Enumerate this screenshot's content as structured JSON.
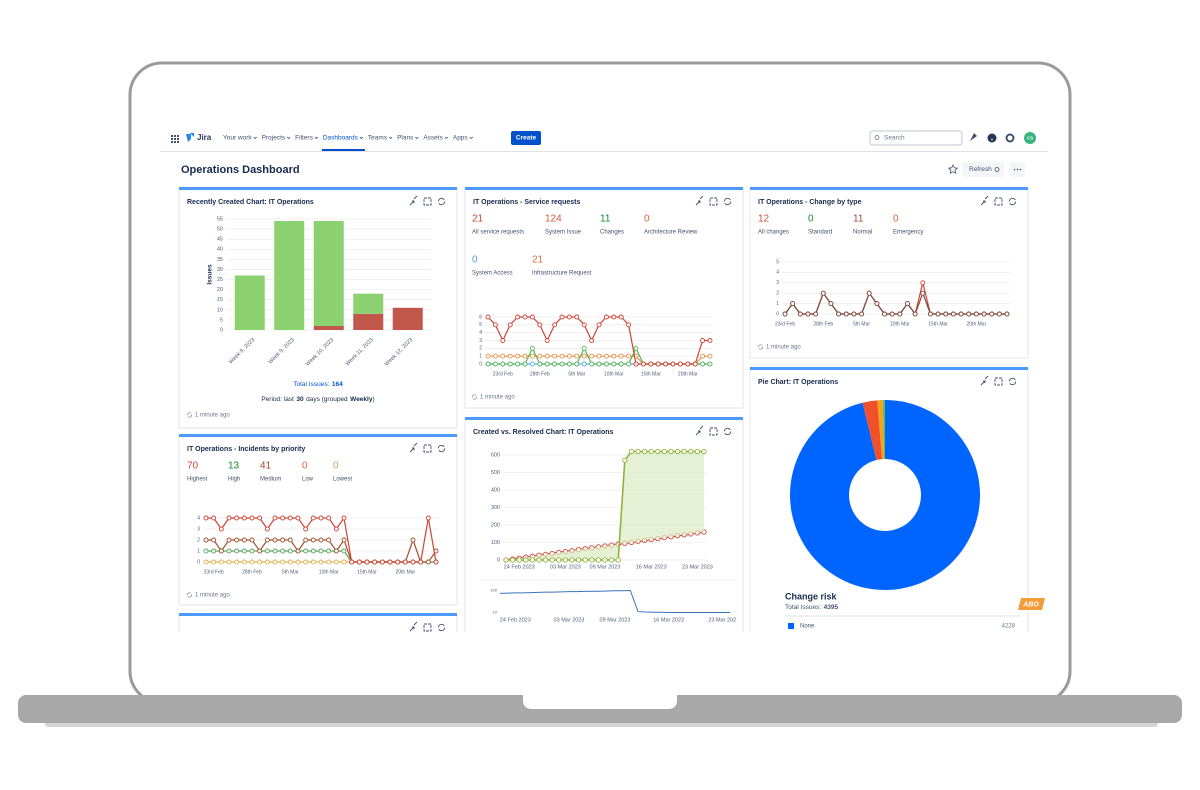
{
  "nav": {
    "logo": "Jira",
    "items": [
      "Your work",
      "Projects",
      "Filters",
      "Dashboards",
      "Teams",
      "Plans",
      "Assets",
      "Apps"
    ],
    "active": "Dashboards",
    "create": "Create",
    "search": "Search",
    "avatar": "CS"
  },
  "page": {
    "title": "Operations Dashboard",
    "refresh": "Refresh",
    "badge": "ABO"
  },
  "gadgets": {
    "created_chart": {
      "title": "Recently Created Chart: IT Operations",
      "updated": "1 minute ago",
      "chart": {
        "type": "bar",
        "y_label": "Issues",
        "categories": [
          "Week 8, 2023",
          "Week 9, 2023",
          "Week 10, 2023",
          "Week 11, 2023",
          "Week 12, 2023"
        ],
        "series": [
          {
            "color": "#c1564a",
            "values": [
              0,
              0,
              2,
              8,
              11
            ]
          },
          {
            "color": "#8bd170",
            "values": [
              27,
              54,
              52,
              10,
              0
            ]
          }
        ],
        "ylim": [
          0,
          55
        ],
        "yticks": [
          0,
          5,
          10,
          15,
          20,
          25,
          30,
          35,
          40,
          45,
          50,
          55
        ],
        "grid": true
      },
      "total_label": "Total Issues:",
      "total": 164,
      "period": {
        "prefix": "Period: last",
        "days": 30,
        "middle": "days (grouped",
        "grouping": "Weekly",
        "suffix": ")"
      }
    },
    "service_requests": {
      "title": "IT Operations - Service requests",
      "updated": "1 minute ago",
      "stats": [
        {
          "value": 21,
          "label": "All service requests",
          "color": "#d04437"
        },
        {
          "value": 124,
          "label": "System Issue",
          "color": "#d9583f"
        },
        {
          "value": 11,
          "label": "Changes",
          "color": "#14892c"
        },
        {
          "value": 0,
          "label": "Architecture Review",
          "color": "#e0603a"
        },
        {
          "value": 0,
          "label": "System Access",
          "color": "#4a9fd5"
        },
        {
          "value": 21,
          "label": "Infrastructure Request",
          "color": "#e06a4a"
        }
      ],
      "chart": {
        "type": "line",
        "categories": [
          null,
          null,
          "23rd Feb",
          null,
          null,
          null,
          null,
          "28th Feb",
          null,
          null,
          null,
          null,
          "5th Mar",
          null,
          null,
          null,
          null,
          "10th Mar",
          null,
          null,
          null,
          null,
          "15th Mar",
          null,
          null,
          null,
          null,
          "20th Mar",
          null,
          null,
          null
        ],
        "ylim": [
          0,
          6
        ],
        "yticks": [
          0,
          1,
          2,
          3,
          4,
          5,
          6
        ],
        "grid": true,
        "series": [
          {
            "color": "#59afe1",
            "values": [
              0,
              0,
              0,
              0,
              0,
              0,
              0,
              0,
              0,
              0,
              0,
              0,
              0,
              0,
              0,
              0,
              0,
              0,
              0,
              0,
              0,
              0,
              0,
              0,
              0,
              0,
              0,
              0,
              0,
              0,
              0
            ]
          },
          {
            "color": "#e8914a",
            "values": [
              1,
              1,
              1,
              1,
              1,
              1,
              1,
              1,
              1,
              1,
              1,
              1,
              1,
              1,
              1,
              1,
              1,
              1,
              1,
              1,
              1,
              0,
              0,
              0,
              0,
              0,
              0,
              0,
              0,
              1,
              1
            ]
          },
          {
            "color": "#5cb85c",
            "values": [
              0,
              0,
              0,
              0,
              0,
              0,
              2,
              0,
              0,
              0,
              0,
              0,
              0,
              2,
              0,
              0,
              0,
              0,
              0,
              0,
              2,
              0,
              0,
              0,
              0,
              0,
              0,
              0,
              0,
              0,
              0
            ]
          },
          {
            "color": "#d04437",
            "values": [
              6,
              5,
              3,
              5,
              6,
              6,
              6,
              5,
              3,
              5,
              6,
              6,
              6,
              5,
              3,
              5,
              6,
              6,
              6,
              5,
              0,
              0,
              0,
              0,
              0,
              0,
              0,
              0,
              0,
              3,
              3
            ]
          }
        ]
      }
    },
    "change_by_type": {
      "title": "IT Operations - Change by type",
      "updated": "1 minute ago",
      "stats": [
        {
          "value": 12,
          "label": "All changes",
          "color": "#c9503c"
        },
        {
          "value": 0,
          "label": "Standard",
          "color": "#14892c"
        },
        {
          "value": 11,
          "label": "Normal",
          "color": "#9c4a36"
        },
        {
          "value": 0,
          "label": "Emergency",
          "color": "#e0603a"
        }
      ],
      "chart": {
        "type": "line",
        "categories": [
          "23rd Feb",
          null,
          null,
          null,
          null,
          "28th Feb",
          null,
          null,
          null,
          null,
          "5th Mar",
          null,
          null,
          null,
          null,
          "10th Mar",
          null,
          null,
          null,
          null,
          "15th Mar",
          null,
          null,
          null,
          null,
          "20th Mar",
          null,
          null,
          null,
          null
        ],
        "ylim": [
          0,
          5
        ],
        "yticks": [
          0,
          1,
          2,
          3,
          4,
          5
        ],
        "grid": true,
        "series": [
          {
            "color": "#d04437",
            "values": [
              0,
              1,
              0,
              0,
              0,
              2,
              1,
              0,
              0,
              0,
              0,
              2,
              1,
              0,
              0,
              0,
              1,
              0,
              3,
              0,
              0,
              0,
              0,
              0,
              0,
              0,
              0,
              0,
              0,
              0
            ]
          },
          {
            "color": "#7a4a3e",
            "values": [
              0,
              1,
              0,
              0,
              0,
              2,
              1,
              0,
              0,
              0,
              0,
              2,
              1,
              0,
              0,
              0,
              1,
              0,
              2,
              0,
              0,
              0,
              0,
              0,
              0,
              0,
              0,
              0,
              0,
              0
            ]
          }
        ]
      }
    },
    "incidents": {
      "title": "IT Operations - Incidents by priority",
      "updated": "1 minute ago",
      "stats": [
        {
          "value": 70,
          "label": "Highest",
          "color": "#d04437"
        },
        {
          "value": 13,
          "label": "High",
          "color": "#14892c"
        },
        {
          "value": 41,
          "label": "Medium",
          "color": "#a0462e"
        },
        {
          "value": 0,
          "label": "Low",
          "color": "#e0603a"
        },
        {
          "value": 0,
          "label": "Lowest",
          "color": "#d4a056"
        }
      ],
      "chart": {
        "type": "line",
        "categories": [
          null,
          "23rd Feb",
          null,
          null,
          null,
          null,
          "28th Feb",
          null,
          null,
          null,
          null,
          "5th Mar",
          null,
          null,
          null,
          null,
          "10th Mar",
          null,
          null,
          null,
          null,
          "15th Mar",
          null,
          null,
          null,
          null,
          "20th Mar",
          null,
          null,
          null,
          null
        ],
        "ylim": [
          0,
          4
        ],
        "yticks": [
          0,
          1,
          2,
          3,
          4
        ],
        "grid": true,
        "series": [
          {
            "color": "#e0b050",
            "values": [
              0,
              0,
              0,
              0,
              0,
              0,
              0,
              0,
              0,
              0,
              0,
              0,
              0,
              0,
              0,
              0,
              0,
              0,
              0,
              0,
              0,
              0,
              0,
              0,
              0,
              0,
              0,
              0,
              0,
              0,
              0
            ]
          },
          {
            "color": "#59a55b",
            "values": [
              1,
              1,
              1,
              1,
              1,
              1,
              1,
              1,
              1,
              1,
              1,
              1,
              1,
              1,
              1,
              1,
              1,
              1,
              1,
              0,
              0,
              0,
              0,
              0,
              0,
              0,
              0,
              0,
              0,
              0,
              0
            ]
          },
          {
            "color": "#a0522d",
            "values": [
              2,
              2,
              1,
              2,
              2,
              2,
              2,
              1,
              2,
              2,
              2,
              2,
              1,
              2,
              2,
              2,
              2,
              1,
              2,
              0,
              0,
              0,
              0,
              0,
              0,
              0,
              0,
              2,
              0,
              0,
              1
            ]
          },
          {
            "color": "#d04437",
            "values": [
              4,
              4,
              3,
              4,
              4,
              4,
              4,
              4,
              3,
              4,
              4,
              4,
              4,
              3,
              4,
              4,
              4,
              3,
              4,
              0,
              0,
              0,
              0,
              0,
              0,
              0,
              0,
              0,
              0,
              4,
              0
            ]
          }
        ]
      }
    },
    "created_vs_resolved": {
      "title": "Created vs. Resolved Chart: IT Operations",
      "chart": {
        "type": "line",
        "categories": [
          null,
          null,
          "24 Feb 2023",
          null,
          null,
          null,
          null,
          null,
          null,
          "03 Mar 2023",
          null,
          null,
          null,
          null,
          null,
          "09 Mar 2023",
          null,
          null,
          null,
          null,
          null,
          null,
          "16 Mar 2023",
          null,
          null,
          null,
          null,
          null,
          null,
          "23 Mar 2023",
          null
        ],
        "ylim": [
          0,
          640
        ],
        "yticks": [
          0,
          100,
          200,
          300,
          400,
          500,
          600
        ],
        "grid": true,
        "series": [
          {
            "color": "#d04437",
            "values": [
              0,
              5,
              10,
              16,
              21,
              27,
              32,
              37,
              43,
              48,
              53,
              59,
              64,
              69,
              75,
              80,
              85,
              91,
              96,
              101,
              107,
              112,
              117,
              123,
              128,
              133,
              139,
              144,
              149,
              155,
              160
            ]
          },
          {
            "color": "#8fb339",
            "values": [
              0,
              0,
              0,
              0,
              0,
              0,
              0,
              0,
              0,
              0,
              0,
              0,
              0,
              0,
              0,
              0,
              0,
              0,
              570,
              620,
              620,
              620,
              620,
              620,
              620,
              620,
              620,
              620,
              620,
              620,
              620
            ]
          }
        ]
      },
      "overview": {
        "type": "line",
        "categories": [
          null,
          null,
          "24 Feb 2023",
          null,
          null,
          null,
          null,
          null,
          null,
          "03 Mar 2023",
          null,
          null,
          null,
          null,
          null,
          "09 Mar 2023",
          null,
          null,
          null,
          null,
          null,
          null,
          "16 Mar 2023",
          null,
          null,
          null,
          null,
          null,
          null,
          "23 Mar 202",
          null
        ],
        "ylim": [
          0,
          110
        ],
        "yticks": [
          10,
          100
        ],
        "series": [
          {
            "color": "#3b73b9",
            "values": [
              88,
              89,
              90,
              90,
              91,
              92,
              93,
              93,
              94,
              95,
              95,
              96,
              97,
              97,
              98,
              99,
              99,
              100,
              14,
              12,
              11,
              11,
              10,
              10,
              10,
              10,
              10,
              10,
              10,
              10,
              10
            ]
          }
        ]
      }
    },
    "pie": {
      "title": "Pie Chart: IT Operations",
      "chart": {
        "type": "pie",
        "subtitle": "Change risk",
        "total_label": "Total Issues:",
        "total": 4395,
        "labels": [
          "None",
          null,
          null,
          null
        ],
        "values": [
          4228,
          110,
          40,
          17
        ],
        "colors": [
          "#0065ff",
          "#f0502a",
          "#f7a21b",
          "#57c25a"
        ]
      }
    }
  }
}
